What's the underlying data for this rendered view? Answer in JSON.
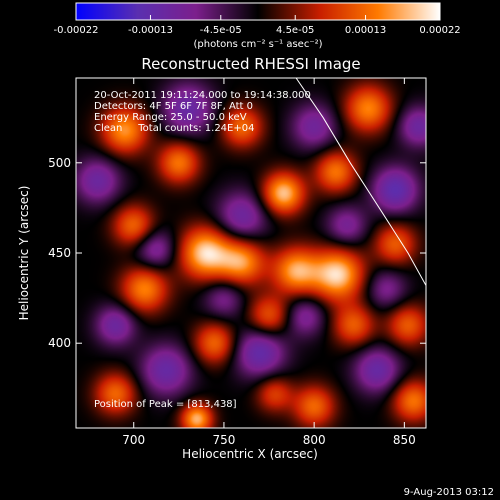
{
  "chart_data": {
    "type": "heatmap",
    "title": "Reconstructed RHESSI Image",
    "xlabel": "Heliocentric X (arcsec)",
    "ylabel": "Heliocentric Y (arcsec)",
    "xlim": [
      668,
      862
    ],
    "ylim": [
      353,
      547
    ],
    "x_ticks": [
      700,
      750,
      800,
      850
    ],
    "y_ticks": [
      400,
      450,
      500
    ],
    "colorbar": {
      "range": [
        -0.00022,
        0.00022
      ],
      "tick_values": [
        -0.00022,
        -0.00013,
        -4.5e-05,
        4.5e-05,
        0.00013,
        0.00022
      ],
      "tick_labels": [
        "-0.00022",
        "-0.00013",
        "-4.5e-05",
        "4.5e-05",
        "0.00013",
        "0.00022"
      ],
      "unit_label": "(photons cm⁻² s⁻¹ asec⁻²)",
      "colormap": [
        "#0000ff",
        "#5a2fb0",
        "#7c1f8c",
        "#000000",
        "#c81e00",
        "#ff7a00",
        "#ffffff"
      ]
    },
    "info": {
      "time": "20-Oct-2011 19:11:24.000 to 19:14:38.000",
      "detectors": "Detectors: 4F 5F 6F 7F 8F, Att 0",
      "energy": "Energy Range: 25.0 - 50.0 keV",
      "clean": "Clean     Total counts: 1.24E+04"
    },
    "peak_label": "Position of Peak = [813,438]",
    "peak": [
      813,
      438
    ],
    "limb_arc": [
      [
        790,
        547
      ],
      [
        805,
        525
      ],
      [
        820,
        500
      ],
      [
        838,
        472
      ],
      [
        852,
        450
      ],
      [
        862,
        432
      ]
    ],
    "sources": [
      {
        "x": 740,
        "y": 450,
        "amplitude": 0.0002,
        "sigma": 10
      },
      {
        "x": 783,
        "y": 483,
        "amplitude": 0.00019,
        "sigma": 8
      },
      {
        "x": 813,
        "y": 438,
        "amplitude": 0.0002,
        "sigma": 10
      },
      {
        "x": 790,
        "y": 440,
        "amplitude": 0.00017,
        "sigma": 9
      },
      {
        "x": 760,
        "y": 445,
        "amplitude": 0.00016,
        "sigma": 9
      },
      {
        "x": 706,
        "y": 430,
        "amplitude": 0.00015,
        "sigma": 9
      },
      {
        "x": 695,
        "y": 518,
        "amplitude": 0.00016,
        "sigma": 9
      },
      {
        "x": 725,
        "y": 500,
        "amplitude": 0.00014,
        "sigma": 8
      },
      {
        "x": 760,
        "y": 520,
        "amplitude": 0.00013,
        "sigma": 8
      },
      {
        "x": 830,
        "y": 530,
        "amplitude": 0.00015,
        "sigma": 9
      },
      {
        "x": 812,
        "y": 495,
        "amplitude": 0.00014,
        "sigma": 8
      },
      {
        "x": 845,
        "y": 455,
        "amplitude": 0.00012,
        "sigma": 8
      },
      {
        "x": 700,
        "y": 465,
        "amplitude": 0.00013,
        "sigma": 8
      },
      {
        "x": 745,
        "y": 400,
        "amplitude": 0.00013,
        "sigma": 8
      },
      {
        "x": 775,
        "y": 415,
        "amplitude": 0.00012,
        "sigma": 8
      },
      {
        "x": 822,
        "y": 410,
        "amplitude": 0.00012,
        "sigma": 8
      },
      {
        "x": 852,
        "y": 410,
        "amplitude": 0.00012,
        "sigma": 8
      },
      {
        "x": 690,
        "y": 372,
        "amplitude": 0.00013,
        "sigma": 8
      },
      {
        "x": 735,
        "y": 358,
        "amplitude": 0.00018,
        "sigma": 6
      },
      {
        "x": 800,
        "y": 365,
        "amplitude": 0.00013,
        "sigma": 8
      },
      {
        "x": 855,
        "y": 368,
        "amplitude": 0.00014,
        "sigma": 8
      },
      {
        "x": 778,
        "y": 372,
        "amplitude": 0.0001,
        "sigma": 7
      },
      {
        "x": 718,
        "y": 385,
        "amplitude": -0.00012,
        "sigma": 10
      },
      {
        "x": 770,
        "y": 395,
        "amplitude": -0.00013,
        "sigma": 10
      },
      {
        "x": 835,
        "y": 385,
        "amplitude": -0.00012,
        "sigma": 9
      },
      {
        "x": 760,
        "y": 470,
        "amplitude": -0.00011,
        "sigma": 10
      },
      {
        "x": 845,
        "y": 485,
        "amplitude": -0.00014,
        "sigma": 9
      },
      {
        "x": 730,
        "y": 530,
        "amplitude": -0.00012,
        "sigma": 10
      },
      {
        "x": 800,
        "y": 520,
        "amplitude": -0.0001,
        "sigma": 9
      },
      {
        "x": 680,
        "y": 490,
        "amplitude": -0.00011,
        "sigma": 9
      },
      {
        "x": 712,
        "y": 452,
        "amplitude": -0.0001,
        "sigma": 8
      },
      {
        "x": 690,
        "y": 410,
        "amplitude": -0.00011,
        "sigma": 8
      },
      {
        "x": 858,
        "y": 520,
        "amplitude": -0.00011,
        "sigma": 8
      },
      {
        "x": 818,
        "y": 465,
        "amplitude": -9e-05,
        "sigma": 8
      },
      {
        "x": 750,
        "y": 425,
        "amplitude": -8e-05,
        "sigma": 8
      },
      {
        "x": 795,
        "y": 415,
        "amplitude": -9e-05,
        "sigma": 8
      },
      {
        "x": 840,
        "y": 430,
        "amplitude": -8e-05,
        "sigma": 8
      }
    ]
  },
  "footer": {
    "timestamp": "9-Aug-2013 03:12"
  }
}
